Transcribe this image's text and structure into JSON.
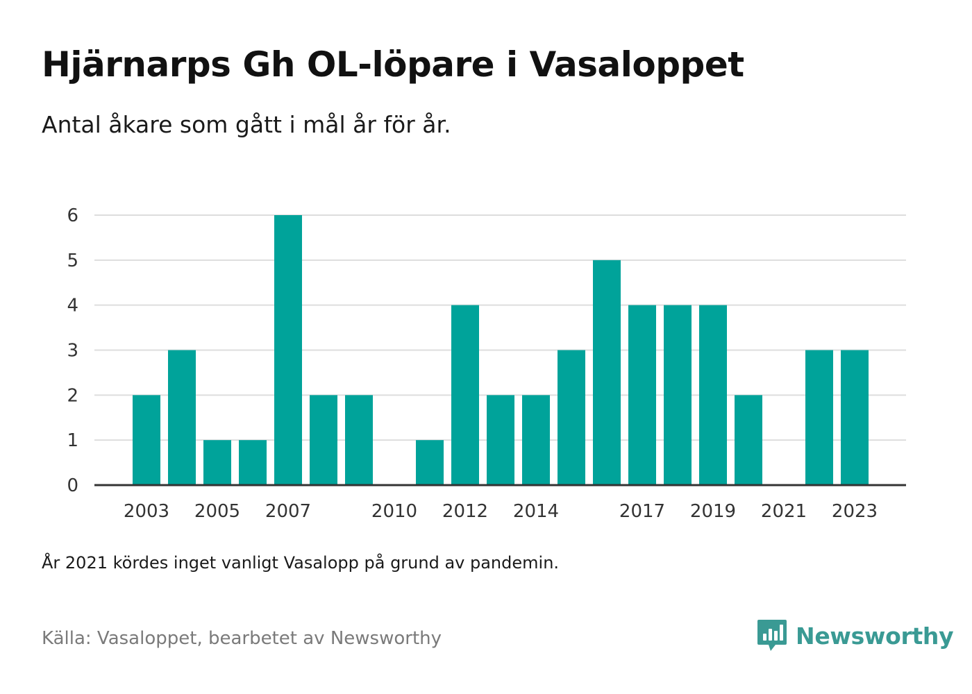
{
  "title": "Hjärnarps Gh OL-löpare i Vasaloppet",
  "subtitle": "Antal åkare som gått i mål år för år.",
  "note": "År 2021 kördes inget vanligt Vasalopp på grund av pandemin.",
  "source": "Källa: Vasaloppet, bearbetet av Newsworthy",
  "brand": {
    "name": "Newsworthy",
    "icon": "newsworthy-logo-icon",
    "color": "#3a9a94"
  },
  "colors": {
    "bar": "#00a39a",
    "grid": "#dddddd",
    "axis": "#333333"
  },
  "chart_data": {
    "type": "bar",
    "categories": [
      "2003",
      "2004",
      "2005",
      "2006",
      "2007",
      "2008",
      "2009",
      "2010",
      "2011",
      "2012",
      "2013",
      "2014",
      "2015",
      "2016",
      "2017",
      "2018",
      "2019",
      "2020",
      "2021",
      "2022",
      "2023"
    ],
    "values": [
      2,
      3,
      1,
      1,
      6,
      2,
      2,
      0,
      1,
      4,
      2,
      2,
      3,
      5,
      4,
      4,
      4,
      2,
      0,
      3,
      3
    ],
    "x_tick_labels": [
      "2003",
      "2005",
      "2007",
      "2010",
      "2012",
      "2014",
      "2017",
      "2019",
      "2021",
      "2023"
    ],
    "y_ticks": [
      0,
      1,
      2,
      3,
      4,
      5,
      6
    ],
    "ylim": [
      0,
      6
    ],
    "xlabel": "",
    "ylabel": "",
    "grid": true
  }
}
